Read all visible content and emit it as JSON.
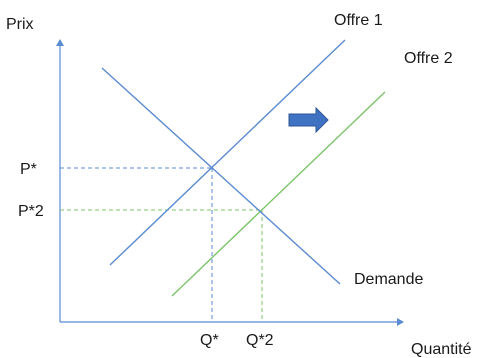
{
  "axes": {
    "y_label": "Prix",
    "x_label": "Quantité",
    "axis_color": "#5b8bd0"
  },
  "curves": {
    "supply1": {
      "label": "Offre 1",
      "color": "#5b8bd0"
    },
    "supply2": {
      "label": "Offre 2",
      "color": "#7cc46a"
    },
    "demand": {
      "label": "Demande",
      "color": "#5b8bd0"
    }
  },
  "equilibria": {
    "first": {
      "price_label": "P*",
      "quantity_label": "Q*"
    },
    "second": {
      "price_label": "P*2",
      "quantity_label": "Q*2"
    }
  },
  "shift_arrow": {
    "direction": "right",
    "icon": "arrow-right-icon",
    "fill_color": "#3f72c2",
    "stroke_color": "#2d5796"
  }
}
